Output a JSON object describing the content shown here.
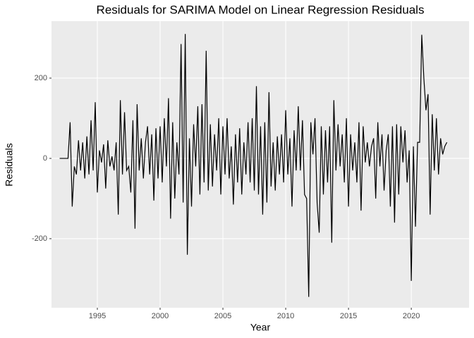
{
  "chart_data": {
    "type": "line",
    "title": "Residuals for SARIMA Model on Linear Regression Residuals",
    "x_label": "Year",
    "y_label": "Residuals",
    "xlim": [
      1991.35,
      2024.6
    ],
    "ylim": [
      -372,
      342
    ],
    "xticks": [
      1995,
      2000,
      2005,
      2010,
      2015,
      2020
    ],
    "yticks": [
      -200,
      0,
      200
    ],
    "grid": true,
    "series": [
      {
        "color": "#000000",
        "x": [
          1992,
          1992.167,
          1992.333,
          1992.5,
          1992.667,
          1992.833,
          1993,
          1993.167,
          1993.333,
          1993.5,
          1993.667,
          1993.833,
          1994,
          1994.167,
          1994.333,
          1994.5,
          1994.667,
          1994.833,
          1995,
          1995.167,
          1995.333,
          1995.5,
          1995.667,
          1995.833,
          1996,
          1996.167,
          1996.333,
          1996.5,
          1996.667,
          1996.833,
          1997,
          1997.167,
          1997.333,
          1997.5,
          1997.667,
          1997.833,
          1998,
          1998.167,
          1998.333,
          1998.5,
          1998.667,
          1998.833,
          1999,
          1999.167,
          1999.333,
          1999.5,
          1999.667,
          1999.833,
          2000,
          2000.167,
          2000.333,
          2000.5,
          2000.667,
          2000.833,
          2001,
          2001.167,
          2001.333,
          2001.5,
          2001.667,
          2001.833,
          2002,
          2002.167,
          2002.333,
          2002.5,
          2002.667,
          2002.833,
          2003,
          2003.167,
          2003.333,
          2003.5,
          2003.667,
          2003.833,
          2004,
          2004.167,
          2004.333,
          2004.5,
          2004.667,
          2004.833,
          2005,
          2005.167,
          2005.333,
          2005.5,
          2005.667,
          2005.833,
          2006,
          2006.167,
          2006.333,
          2006.5,
          2006.667,
          2006.833,
          2007,
          2007.167,
          2007.333,
          2007.5,
          2007.667,
          2007.833,
          2008,
          2008.167,
          2008.333,
          2008.5,
          2008.667,
          2008.833,
          2009,
          2009.167,
          2009.333,
          2009.5,
          2009.667,
          2009.833,
          2010,
          2010.167,
          2010.333,
          2010.5,
          2010.667,
          2010.833,
          2011,
          2011.167,
          2011.333,
          2011.5,
          2011.667,
          2011.833,
          2012,
          2012.167,
          2012.333,
          2012.5,
          2012.667,
          2012.833,
          2013,
          2013.167,
          2013.333,
          2013.5,
          2013.667,
          2013.833,
          2014,
          2014.167,
          2014.333,
          2014.5,
          2014.667,
          2014.833,
          2015,
          2015.167,
          2015.333,
          2015.5,
          2015.667,
          2015.833,
          2016,
          2016.167,
          2016.333,
          2016.5,
          2016.667,
          2016.833,
          2017,
          2017.167,
          2017.333,
          2017.5,
          2017.667,
          2017.833,
          2018,
          2018.167,
          2018.333,
          2018.5,
          2018.667,
          2018.833,
          2019,
          2019.167,
          2019.333,
          2019.5,
          2019.667,
          2019.833,
          2020,
          2020.167,
          2020.333,
          2020.5,
          2020.667,
          2020.833,
          2021,
          2021.167,
          2021.333,
          2021.5,
          2021.667,
          2021.833,
          2022,
          2022.167,
          2022.333,
          2022.5,
          2022.667,
          2022.833
        ],
        "values": [
          0,
          0,
          0,
          0,
          0,
          90,
          -120,
          -20,
          -40,
          45,
          -30,
          40,
          -50,
          55,
          -40,
          95,
          -30,
          140,
          -85,
          20,
          -10,
          35,
          -75,
          45,
          -20,
          5,
          -30,
          40,
          -140,
          145,
          -40,
          115,
          -30,
          -20,
          -85,
          95,
          -175,
          135,
          -30,
          50,
          -50,
          40,
          80,
          -40,
          60,
          -105,
          75,
          -50,
          80,
          -60,
          100,
          -20,
          150,
          -150,
          90,
          -100,
          40,
          -40,
          285,
          -110,
          310,
          -240,
          50,
          -120,
          85,
          -20,
          130,
          -90,
          135,
          -60,
          268,
          -80,
          85,
          -70,
          60,
          -30,
          100,
          -90,
          80,
          -40,
          100,
          -50,
          30,
          -115,
          60,
          -60,
          75,
          -90,
          40,
          -40,
          90,
          -60,
          100,
          -80,
          180,
          -90,
          80,
          -140,
          90,
          -110,
          165,
          -70,
          40,
          -80,
          55,
          -40,
          60,
          -60,
          120,
          -40,
          50,
          -120,
          70,
          -30,
          130,
          -30,
          95,
          -90,
          -100,
          -345,
          90,
          10,
          100,
          -110,
          -185,
          80,
          -90,
          70,
          -60,
          80,
          -210,
          145,
          -30,
          85,
          -20,
          60,
          -60,
          100,
          -120,
          60,
          -30,
          40,
          -60,
          90,
          -130,
          80,
          -10,
          40,
          -20,
          30,
          50,
          -100,
          90,
          -20,
          60,
          -80,
          20,
          60,
          -120,
          80,
          -160,
          85,
          -90,
          80,
          -10,
          70,
          -60,
          20,
          -305,
          30,
          -170,
          40,
          40,
          308,
          200,
          120,
          160,
          -140,
          110,
          -30,
          100,
          -40,
          50,
          10,
          30,
          40
        ]
      }
    ]
  }
}
